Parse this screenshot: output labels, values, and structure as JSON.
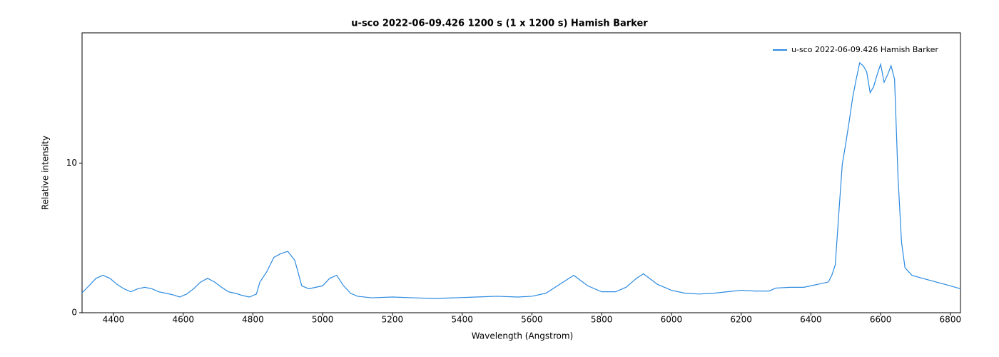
{
  "chart_data": {
    "type": "line",
    "title": "u-sco  2022-06-09.426   1200 s (1 x 1200 s)   Hamish Barker",
    "x_label": "Wavelength (Angstrom)",
    "y_label": "Relative intensity",
    "x": [
      4310,
      4330,
      4350,
      4370,
      4390,
      4410,
      4430,
      4450,
      4470,
      4490,
      4510,
      4530,
      4550,
      4570,
      4590,
      4610,
      4630,
      4650,
      4670,
      4690,
      4710,
      4730,
      4750,
      4770,
      4790,
      4810,
      4820,
      4840,
      4860,
      4880,
      4900,
      4920,
      4940,
      4960,
      4980,
      5000,
      5020,
      5040,
      5060,
      5080,
      5100,
      5140,
      5200,
      5260,
      5320,
      5380,
      5440,
      5500,
      5560,
      5600,
      5640,
      5680,
      5720,
      5760,
      5800,
      5840,
      5870,
      5900,
      5920,
      5960,
      6000,
      6040,
      6080,
      6120,
      6160,
      6200,
      6240,
      6280,
      6300,
      6340,
      6380,
      6420,
      6450,
      6460,
      6470,
      6480,
      6490,
      6500,
      6510,
      6520,
      6530,
      6540,
      6550,
      6560,
      6570,
      6580,
      6590,
      6600,
      6610,
      6620,
      6630,
      6640,
      6650,
      6660,
      6670,
      6690,
      6720,
      6760,
      6800,
      6829
    ],
    "series": [
      {
        "name": "u-sco  2022-06-09.426  Hamish Barker",
        "color": "#2b8ae0",
        "values": [
          1.33,
          1.8,
          2.3,
          2.5,
          2.3,
          1.9,
          1.6,
          1.4,
          1.6,
          1.7,
          1.6,
          1.4,
          1.3,
          1.2,
          1.05,
          1.25,
          1.6,
          2.05,
          2.3,
          2.05,
          1.7,
          1.4,
          1.3,
          1.15,
          1.05,
          1.25,
          2.05,
          2.75,
          3.7,
          3.95,
          4.1,
          3.5,
          1.8,
          1.6,
          1.7,
          1.8,
          2.3,
          2.5,
          1.8,
          1.3,
          1.1,
          1.0,
          1.05,
          1.0,
          0.95,
          1.0,
          1.05,
          1.1,
          1.05,
          1.1,
          1.3,
          1.9,
          2.5,
          1.8,
          1.4,
          1.4,
          1.7,
          2.3,
          2.6,
          1.9,
          1.5,
          1.3,
          1.25,
          1.3,
          1.4,
          1.5,
          1.45,
          1.45,
          1.65,
          1.7,
          1.7,
          1.9,
          2.05,
          2.5,
          3.2,
          6.6,
          9.9,
          11.3,
          12.8,
          14.4,
          15.6,
          16.7,
          16.5,
          16.1,
          14.7,
          15.1,
          15.9,
          16.6,
          15.4,
          15.9,
          16.5,
          15.6,
          9.0,
          4.7,
          3.0,
          2.5,
          2.3,
          2.05,
          1.8,
          1.6
        ]
      }
    ],
    "xlim": [
      4310,
      6829
    ],
    "ylim": [
      0,
      18.7
    ],
    "xticks": [
      4400,
      4600,
      4800,
      5000,
      5200,
      5400,
      5600,
      5800,
      6000,
      6200,
      6400,
      6600,
      6800
    ],
    "yticks": [
      0,
      10
    ],
    "legend": "top-right"
  }
}
